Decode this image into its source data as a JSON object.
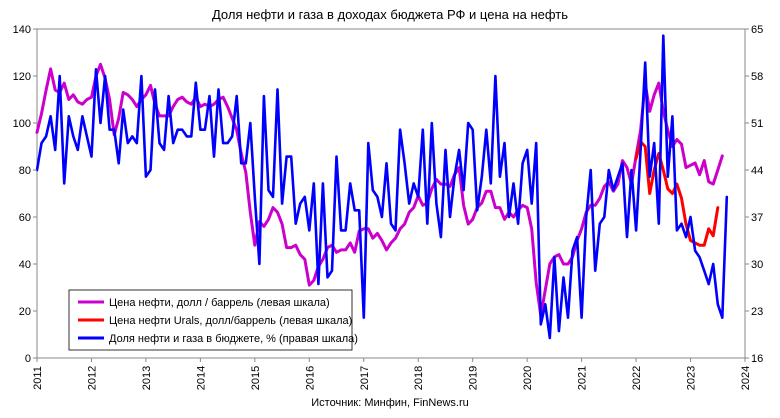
{
  "title": "Доля нефти и газа в доходах бюджета РФ и цена на нефть",
  "source": "Источник: Минфин, FinNews.ru",
  "chart_data": {
    "type": "line",
    "title": "Доля нефти и газа в доходах бюджета РФ и цена на нефть",
    "x_ticks": [
      "2011",
      "2012",
      "2013",
      "2014",
      "2015",
      "2016",
      "2017",
      "2018",
      "2019",
      "2020",
      "2021",
      "2022",
      "2023",
      "2024"
    ],
    "xlim": [
      2011,
      2024
    ],
    "y_left": {
      "lim": [
        0,
        140
      ],
      "ticks": [
        0,
        20,
        40,
        60,
        80,
        100,
        120,
        140
      ]
    },
    "y_right": {
      "lim": [
        16,
        65
      ],
      "ticks": [
        16,
        23,
        30,
        37,
        44,
        51,
        58,
        65
      ]
    },
    "grid": false,
    "legend_placement": "bottom-left",
    "series": [
      {
        "name": "Цена нефти, долл / баррель (левая шкала)",
        "axis": "left",
        "color": "#cc00cc",
        "x_start": 2011.0,
        "step_months": 1,
        "values": [
          96,
          104,
          114,
          123,
          114,
          113,
          117,
          110,
          112,
          109,
          108,
          110,
          111,
          120,
          125,
          119,
          110,
          95,
          102,
          113,
          112,
          110,
          107,
          110,
          112,
          116,
          108,
          103,
          103,
          103,
          107,
          110,
          111,
          109,
          108,
          111,
          107,
          108,
          107,
          108,
          110,
          111,
          107,
          102,
          97,
          87,
          79,
          62,
          48,
          58,
          56,
          59,
          64,
          62,
          57,
          47,
          47,
          48,
          44,
          42,
          31,
          33,
          39,
          42,
          47,
          48,
          45,
          46,
          46,
          49,
          45,
          54,
          55,
          55,
          51,
          53,
          50,
          46,
          49,
          51,
          55,
          57,
          62,
          64,
          69,
          65,
          66,
          72,
          76,
          74,
          74,
          73,
          78,
          81,
          65,
          57,
          59,
          64,
          66,
          71,
          71,
          64,
          64,
          59,
          62,
          60,
          63,
          65,
          64,
          55,
          32,
          18,
          29,
          40,
          43,
          44,
          40,
          40,
          43,
          50,
          55,
          62,
          65,
          65,
          68,
          73,
          75,
          71,
          74,
          84,
          81,
          74,
          86,
          97,
          117,
          105,
          112,
          117,
          105,
          97,
          90,
          93,
          91,
          81,
          82,
          83,
          78,
          84,
          75,
          74,
          80,
          86
        ]
      },
      {
        "name": "Цена нефти Urals, долл/баррель (левая шкала)",
        "axis": "left",
        "color": "#ff0000",
        "x_start": 2022.0,
        "step_months": 1,
        "values": [
          85,
          92,
          90,
          70,
          80,
          87,
          80,
          72,
          70,
          74,
          68,
          57,
          50,
          49,
          48,
          48,
          55,
          52,
          64
        ]
      },
      {
        "name": "Доля нефти и газа в бюджете, % (правая шкала)",
        "axis": "right",
        "color": "#0000ff",
        "x_start": 2011.0,
        "step_months": 1,
        "values": [
          44,
          48,
          49,
          52,
          47,
          58,
          42,
          52,
          49,
          47,
          52,
          49,
          46,
          59,
          51,
          58,
          50,
          50,
          45,
          53,
          48,
          49,
          48,
          58,
          43,
          44,
          56,
          48,
          47,
          55,
          48,
          50,
          50,
          49,
          49,
          57,
          50,
          50,
          55,
          46,
          56,
          48,
          48,
          49,
          55,
          45,
          45,
          51,
          40,
          30,
          55,
          41,
          40,
          56,
          39,
          46,
          46,
          36,
          39,
          40,
          35,
          42,
          27,
          42,
          28,
          29,
          46,
          35,
          35,
          42,
          38,
          38,
          22,
          48,
          41,
          40,
          37,
          45,
          36,
          35,
          50,
          45,
          39,
          42,
          40,
          50,
          36,
          51,
          39,
          34,
          47,
          37,
          43,
          47,
          41,
          51,
          50,
          38,
          43,
          50,
          42,
          58,
          43,
          48,
          37,
          42,
          36,
          45,
          47,
          39,
          48,
          21,
          24,
          19,
          31,
          20,
          28,
          22,
          32,
          34,
          22,
          37,
          44,
          29,
          36,
          37,
          44,
          41,
          43,
          45,
          34,
          44,
          35,
          47,
          60,
          43,
          48,
          36,
          64,
          43,
          52,
          35,
          36,
          34,
          37,
          32,
          31,
          29,
          27,
          30,
          24,
          22,
          40
        ]
      }
    ]
  }
}
